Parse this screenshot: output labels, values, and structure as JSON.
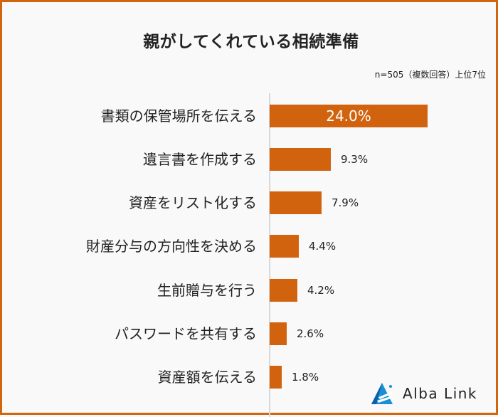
{
  "header": {
    "title": "親がしてくれている相続準備",
    "note": "n=505（複数回答）上位7位"
  },
  "colors": {
    "bar": "#d1620e",
    "border": "#d2660f",
    "background": "#f9f9f9",
    "logo_blue": "#1a8fd6"
  },
  "chart_data": {
    "type": "bar",
    "orientation": "horizontal",
    "title": "親がしてくれている相続準備",
    "subtitle": "n=505（複数回答）上位7位",
    "categories": [
      "書類の保管場所を伝える",
      "遺言書を作成する",
      "資産をリスト化する",
      "財産分与の方向性を決める",
      "生前贈与を行う",
      "パスワードを共有する",
      "資産額を伝える"
    ],
    "values": [
      24.0,
      9.3,
      7.9,
      4.4,
      4.2,
      2.6,
      1.8
    ],
    "value_labels": [
      "24.0%",
      "9.3%",
      "7.9%",
      "4.4%",
      "4.2%",
      "2.6%",
      "1.8%"
    ],
    "unit": "%",
    "xlabel": "",
    "ylabel": "",
    "grid": false,
    "legend": "none",
    "xlim": [
      0,
      24.0
    ]
  },
  "logo": {
    "icon": "triangle-rays-icon",
    "text": "Alba Link"
  }
}
